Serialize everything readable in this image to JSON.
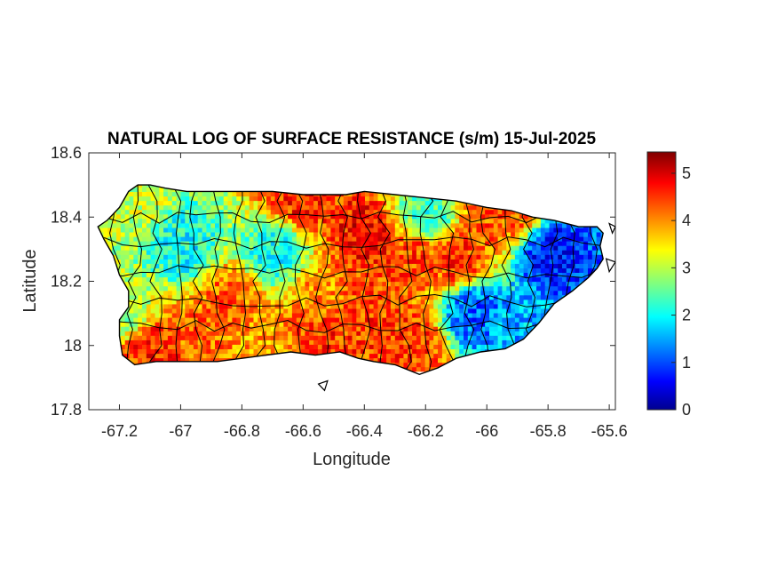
{
  "chart_data": {
    "type": "heatmap",
    "title": "NATURAL LOG OF SURFACE RESISTANCE (s/m) 15-Jul-2025",
    "xlabel": "Longitude",
    "ylabel": "Latitude",
    "xlim": [
      -67.3,
      -65.58
    ],
    "ylim": [
      17.8,
      18.6
    ],
    "xticks": [
      -67.2,
      -67,
      -66.8,
      -66.6,
      -66.4,
      -66.2,
      -66,
      -65.8,
      -65.6
    ],
    "xtick_labels": [
      "-67.2",
      "-67",
      "-66.8",
      "-66.6",
      "-66.4",
      "-66.2",
      "-66",
      "-65.8",
      "-65.6"
    ],
    "yticks": [
      17.8,
      18,
      18.2,
      18.4,
      18.6
    ],
    "ytick_labels": [
      "17.8",
      "18",
      "18.2",
      "18.4",
      "18.6"
    ],
    "colormap": "jet",
    "colorbar": {
      "range": [
        0,
        5.45
      ],
      "ticks": [
        0,
        1,
        2,
        3,
        4,
        5
      ],
      "tick_labels": [
        "0",
        "1",
        "2",
        "3",
        "4",
        "5"
      ],
      "stops": [
        "#00008f",
        "#0000ff",
        "#00ffff",
        "#ffff00",
        "#ff0000",
        "#800000"
      ]
    },
    "region": "Puerto Rico",
    "coastline": [
      [
        -67.27,
        18.37
      ],
      [
        -67.24,
        18.39
      ],
      [
        -67.2,
        18.43
      ],
      [
        -67.17,
        18.48
      ],
      [
        -67.14,
        18.5
      ],
      [
        -67.1,
        18.5
      ],
      [
        -67.05,
        18.49
      ],
      [
        -66.98,
        18.48
      ],
      [
        -66.9,
        18.48
      ],
      [
        -66.8,
        18.48
      ],
      [
        -66.7,
        18.48
      ],
      [
        -66.6,
        18.47
      ],
      [
        -66.53,
        18.47
      ],
      [
        -66.46,
        18.47
      ],
      [
        -66.4,
        18.48
      ],
      [
        -66.3,
        18.47
      ],
      [
        -66.2,
        18.46
      ],
      [
        -66.1,
        18.45
      ],
      [
        -66.0,
        18.43
      ],
      [
        -65.92,
        18.42
      ],
      [
        -65.85,
        18.4
      ],
      [
        -65.78,
        18.39
      ],
      [
        -65.7,
        18.37
      ],
      [
        -65.64,
        18.37
      ],
      [
        -65.62,
        18.35
      ],
      [
        -65.63,
        18.31
      ],
      [
        -65.62,
        18.27
      ],
      [
        -65.64,
        18.24
      ],
      [
        -65.67,
        18.21
      ],
      [
        -65.72,
        18.17
      ],
      [
        -65.78,
        18.13
      ],
      [
        -65.83,
        18.07
      ],
      [
        -65.88,
        18.02
      ],
      [
        -65.94,
        17.99
      ],
      [
        -66.02,
        17.98
      ],
      [
        -66.1,
        17.96
      ],
      [
        -66.16,
        17.93
      ],
      [
        -66.22,
        17.91
      ],
      [
        -66.3,
        17.94
      ],
      [
        -66.37,
        17.95
      ],
      [
        -66.42,
        17.96
      ],
      [
        -66.48,
        17.98
      ],
      [
        -66.56,
        17.97
      ],
      [
        -66.64,
        17.98
      ],
      [
        -66.72,
        17.97
      ],
      [
        -66.8,
        17.96
      ],
      [
        -66.88,
        17.95
      ],
      [
        -66.95,
        17.95
      ],
      [
        -67.02,
        17.95
      ],
      [
        -67.08,
        17.95
      ],
      [
        -67.15,
        17.94
      ],
      [
        -67.19,
        17.97
      ],
      [
        -67.2,
        18.03
      ],
      [
        -67.2,
        18.08
      ],
      [
        -67.17,
        18.12
      ],
      [
        -67.17,
        18.17
      ],
      [
        -67.2,
        18.22
      ],
      [
        -67.22,
        18.28
      ],
      [
        -67.25,
        18.33
      ],
      [
        -67.27,
        18.37
      ]
    ],
    "islets": [
      [
        [
          -66.55,
          17.88
        ],
        [
          -66.52,
          17.89
        ],
        [
          -66.53,
          17.86
        ]
      ],
      [
        [
          -65.6,
          18.38
        ],
        [
          -65.58,
          18.37
        ],
        [
          -65.59,
          18.35
        ]
      ],
      [
        [
          -65.61,
          18.27
        ],
        [
          -65.58,
          18.26
        ],
        [
          -65.6,
          18.23
        ]
      ]
    ],
    "field_hotspots": [
      {
        "lon": -67.1,
        "lat": 17.99,
        "value": 5.0
      },
      {
        "lon": -66.95,
        "lat": 17.99,
        "value": 4.6
      },
      {
        "lon": -66.62,
        "lat": 18.46,
        "value": 5.0
      },
      {
        "lon": -66.4,
        "lat": 18.33,
        "value": 5.2
      },
      {
        "lon": -66.25,
        "lat": 18.27,
        "value": 4.8
      },
      {
        "lon": -66.1,
        "lat": 18.26,
        "value": 4.9
      },
      {
        "lon": -66.0,
        "lat": 18.38,
        "value": 4.6
      },
      {
        "lon": -65.92,
        "lat": 18.42,
        "value": 4.7
      },
      {
        "lon": -66.4,
        "lat": 18.08,
        "value": 4.8
      },
      {
        "lon": -66.25,
        "lat": 18.0,
        "value": 4.9
      },
      {
        "lon": -66.55,
        "lat": 18.02,
        "value": 4.9
      },
      {
        "lon": -66.75,
        "lat": 18.0,
        "value": 4.2
      },
      {
        "lon": -66.85,
        "lat": 18.14,
        "value": 4.6
      },
      {
        "lon": -66.55,
        "lat": 18.15,
        "value": 4.3
      },
      {
        "lon": -65.8,
        "lat": 18.28,
        "value": 0.4
      },
      {
        "lon": -66.05,
        "lat": 18.1,
        "value": 0.9
      },
      {
        "lon": -65.9,
        "lat": 18.05,
        "value": 1.4
      },
      {
        "lon": -67.0,
        "lat": 18.3,
        "value": 2.0
      },
      {
        "lon": -67.15,
        "lat": 18.45,
        "value": 3.2
      },
      {
        "lon": -66.7,
        "lat": 18.28,
        "value": 2.1
      },
      {
        "lon": -66.2,
        "lat": 18.4,
        "value": 2.3
      },
      {
        "lon": -67.18,
        "lat": 18.1,
        "value": 3.0
      }
    ],
    "field_base_value": 2.2,
    "municipality_boundary_color": "#000000"
  }
}
